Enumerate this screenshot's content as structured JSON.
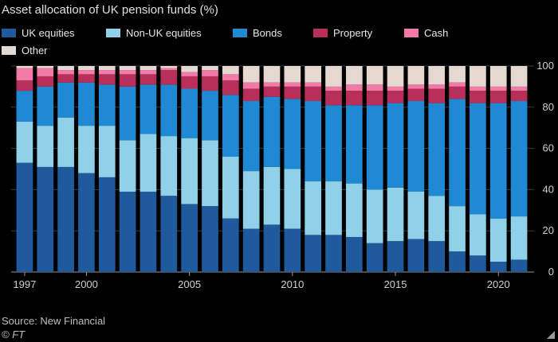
{
  "chart_data": {
    "type": "bar",
    "stacked": true,
    "title": "Asset allocation of UK pension funds (%)",
    "xlabel": "",
    "ylabel": "",
    "ylim": [
      0,
      100
    ],
    "yticks": [
      0,
      20,
      40,
      60,
      80,
      100
    ],
    "xtick_labels": [
      "1997",
      "2000",
      "2005",
      "2010",
      "2015",
      "2020"
    ],
    "grid": true,
    "legend_position": "top",
    "categories": [
      "1997",
      "1998",
      "1999",
      "2000",
      "2001",
      "2002",
      "2003",
      "2004",
      "2005",
      "2006",
      "2007",
      "2008",
      "2009",
      "2010",
      "2011",
      "2012",
      "2013",
      "2014",
      "2015",
      "2016",
      "2017",
      "2018",
      "2019",
      "2020",
      "2021"
    ],
    "series": [
      {
        "name": "UK equities",
        "color": "#1f5b9c",
        "values": [
          53,
          51,
          51,
          48,
          46,
          39,
          39,
          37,
          33,
          32,
          26,
          21,
          23,
          21,
          18,
          18,
          17,
          14,
          15,
          16,
          15,
          10,
          8,
          5,
          6
        ]
      },
      {
        "name": "Non-UK equities",
        "color": "#90d0e8",
        "values": [
          20,
          20,
          24,
          23,
          25,
          25,
          28,
          29,
          32,
          32,
          30,
          28,
          28,
          29,
          26,
          26,
          26,
          26,
          26,
          23,
          22,
          22,
          20,
          21,
          21
        ]
      },
      {
        "name": "Bonds",
        "color": "#2089d3",
        "values": [
          15,
          19,
          17,
          21,
          20,
          26,
          24,
          25,
          24,
          24,
          30,
          34,
          34,
          34,
          39,
          37,
          38,
          41,
          41,
          44,
          45,
          52,
          54,
          56,
          56
        ]
      },
      {
        "name": "Property",
        "color": "#b8305a",
        "values": [
          5,
          5,
          4,
          4,
          5,
          6,
          5,
          7,
          6,
          7,
          7,
          6,
          5,
          6,
          7,
          7,
          7,
          7,
          6,
          6,
          7,
          6,
          6,
          6,
          5
        ]
      },
      {
        "name": "Cash",
        "color": "#f27aa8",
        "values": [
          6,
          4,
          2,
          2,
          2,
          2,
          2,
          1,
          2,
          3,
          3,
          3,
          2,
          2,
          2,
          2,
          3,
          3,
          2,
          2,
          2,
          2,
          2,
          2,
          2
        ]
      },
      {
        "name": "Other",
        "color": "#e4d8d0",
        "values": [
          1,
          1,
          2,
          2,
          2,
          2,
          2,
          1,
          3,
          2,
          4,
          8,
          8,
          8,
          8,
          10,
          9,
          9,
          10,
          9,
          9,
          8,
          10,
          10,
          10
        ]
      }
    ]
  },
  "footer": {
    "source": "Source: New Financial",
    "credit": "© FT"
  }
}
